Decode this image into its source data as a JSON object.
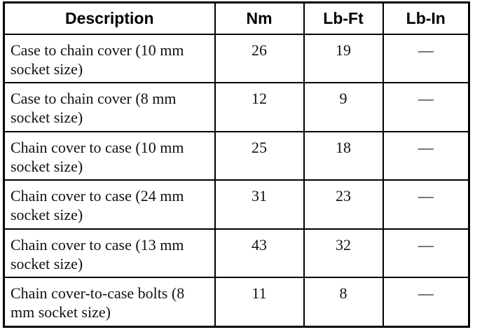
{
  "table": {
    "header": [
      "Description",
      "Nm",
      "Lb-Ft",
      "Lb-In"
    ],
    "rows": [
      [
        "Case to chain cover (10 mm socket size)",
        26,
        19,
        "—"
      ],
      [
        "Case to chain cover (8 mm socket size)",
        12,
        9,
        "—"
      ],
      [
        "Chain cover to case (10 mm socket size)",
        25,
        18,
        "—"
      ],
      [
        "Chain cover to case (24 mm socket size)",
        31,
        23,
        "—"
      ],
      [
        "Chain cover to case (13 mm socket size)",
        43,
        32,
        "—"
      ],
      [
        "Chain cover-to-case bolts (8 mm socket size)",
        11,
        8,
        "—"
      ]
    ]
  }
}
